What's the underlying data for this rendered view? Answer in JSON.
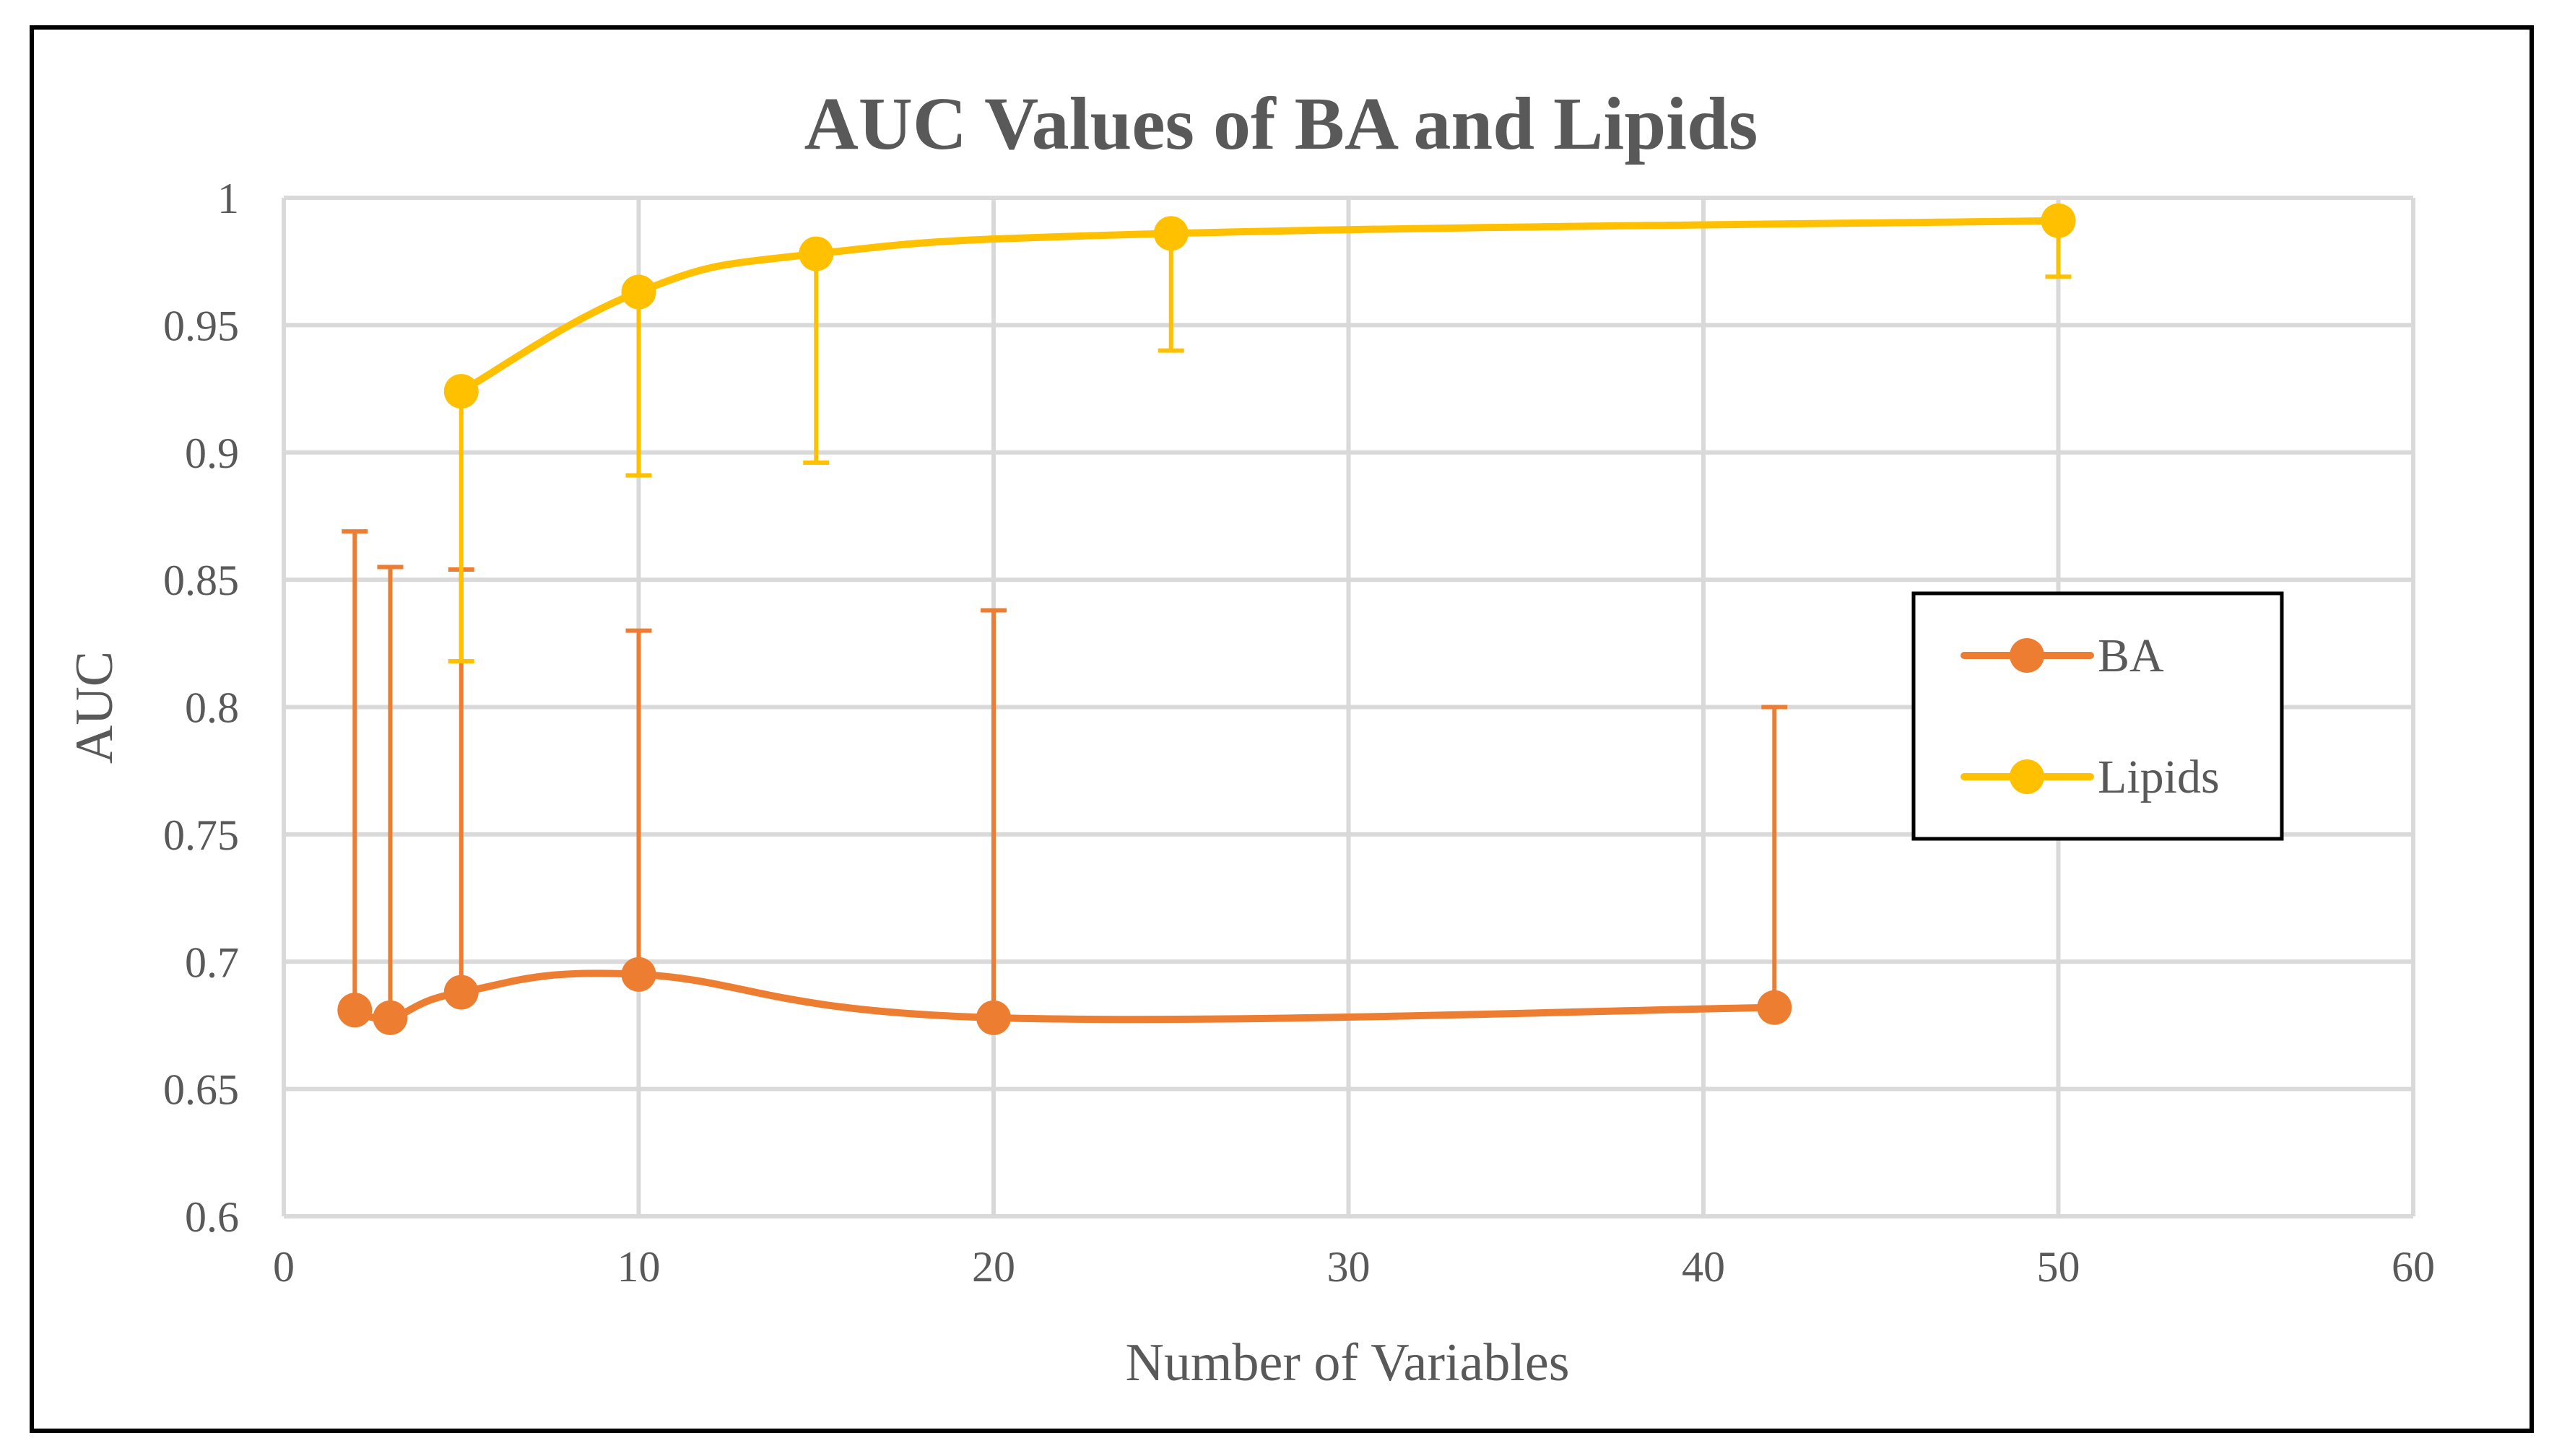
{
  "chart_data": {
    "type": "line",
    "title": "AUC Values of BA and Lipids",
    "xlabel": "Number of Variables",
    "ylabel": "AUC",
    "xlim": [
      0,
      60
    ],
    "ylim": [
      0.6,
      1
    ],
    "x_ticks": [
      0,
      10,
      20,
      30,
      40,
      50,
      60
    ],
    "y_ticks": [
      0.6,
      0.65,
      0.7,
      0.75,
      0.8,
      0.85,
      0.9,
      0.95,
      1
    ],
    "x_tick_labels": [
      "0",
      "10",
      "20",
      "30",
      "40",
      "50",
      "60"
    ],
    "y_tick_labels": [
      "0.6",
      "0.65",
      "0.7",
      "0.75",
      "0.8",
      "0.85",
      "0.9",
      "0.95",
      "1"
    ],
    "grid": true,
    "legend_position": "right",
    "series": [
      {
        "name": "BA",
        "color": "#ED7D31",
        "x": [
          2,
          3,
          5,
          10,
          20,
          42
        ],
        "y": [
          0.681,
          0.678,
          0.688,
          0.695,
          0.678,
          0.682
        ],
        "error_upper": [
          0.869,
          0.855,
          0.854,
          0.83,
          0.838,
          0.8
        ]
      },
      {
        "name": "Lipids",
        "color": "#FFC000",
        "x": [
          5,
          10,
          15,
          25,
          50
        ],
        "y": [
          0.924,
          0.963,
          0.978,
          0.986,
          0.991
        ],
        "error_lower": [
          0.818,
          0.891,
          0.896,
          0.94,
          0.969
        ]
      }
    ]
  }
}
